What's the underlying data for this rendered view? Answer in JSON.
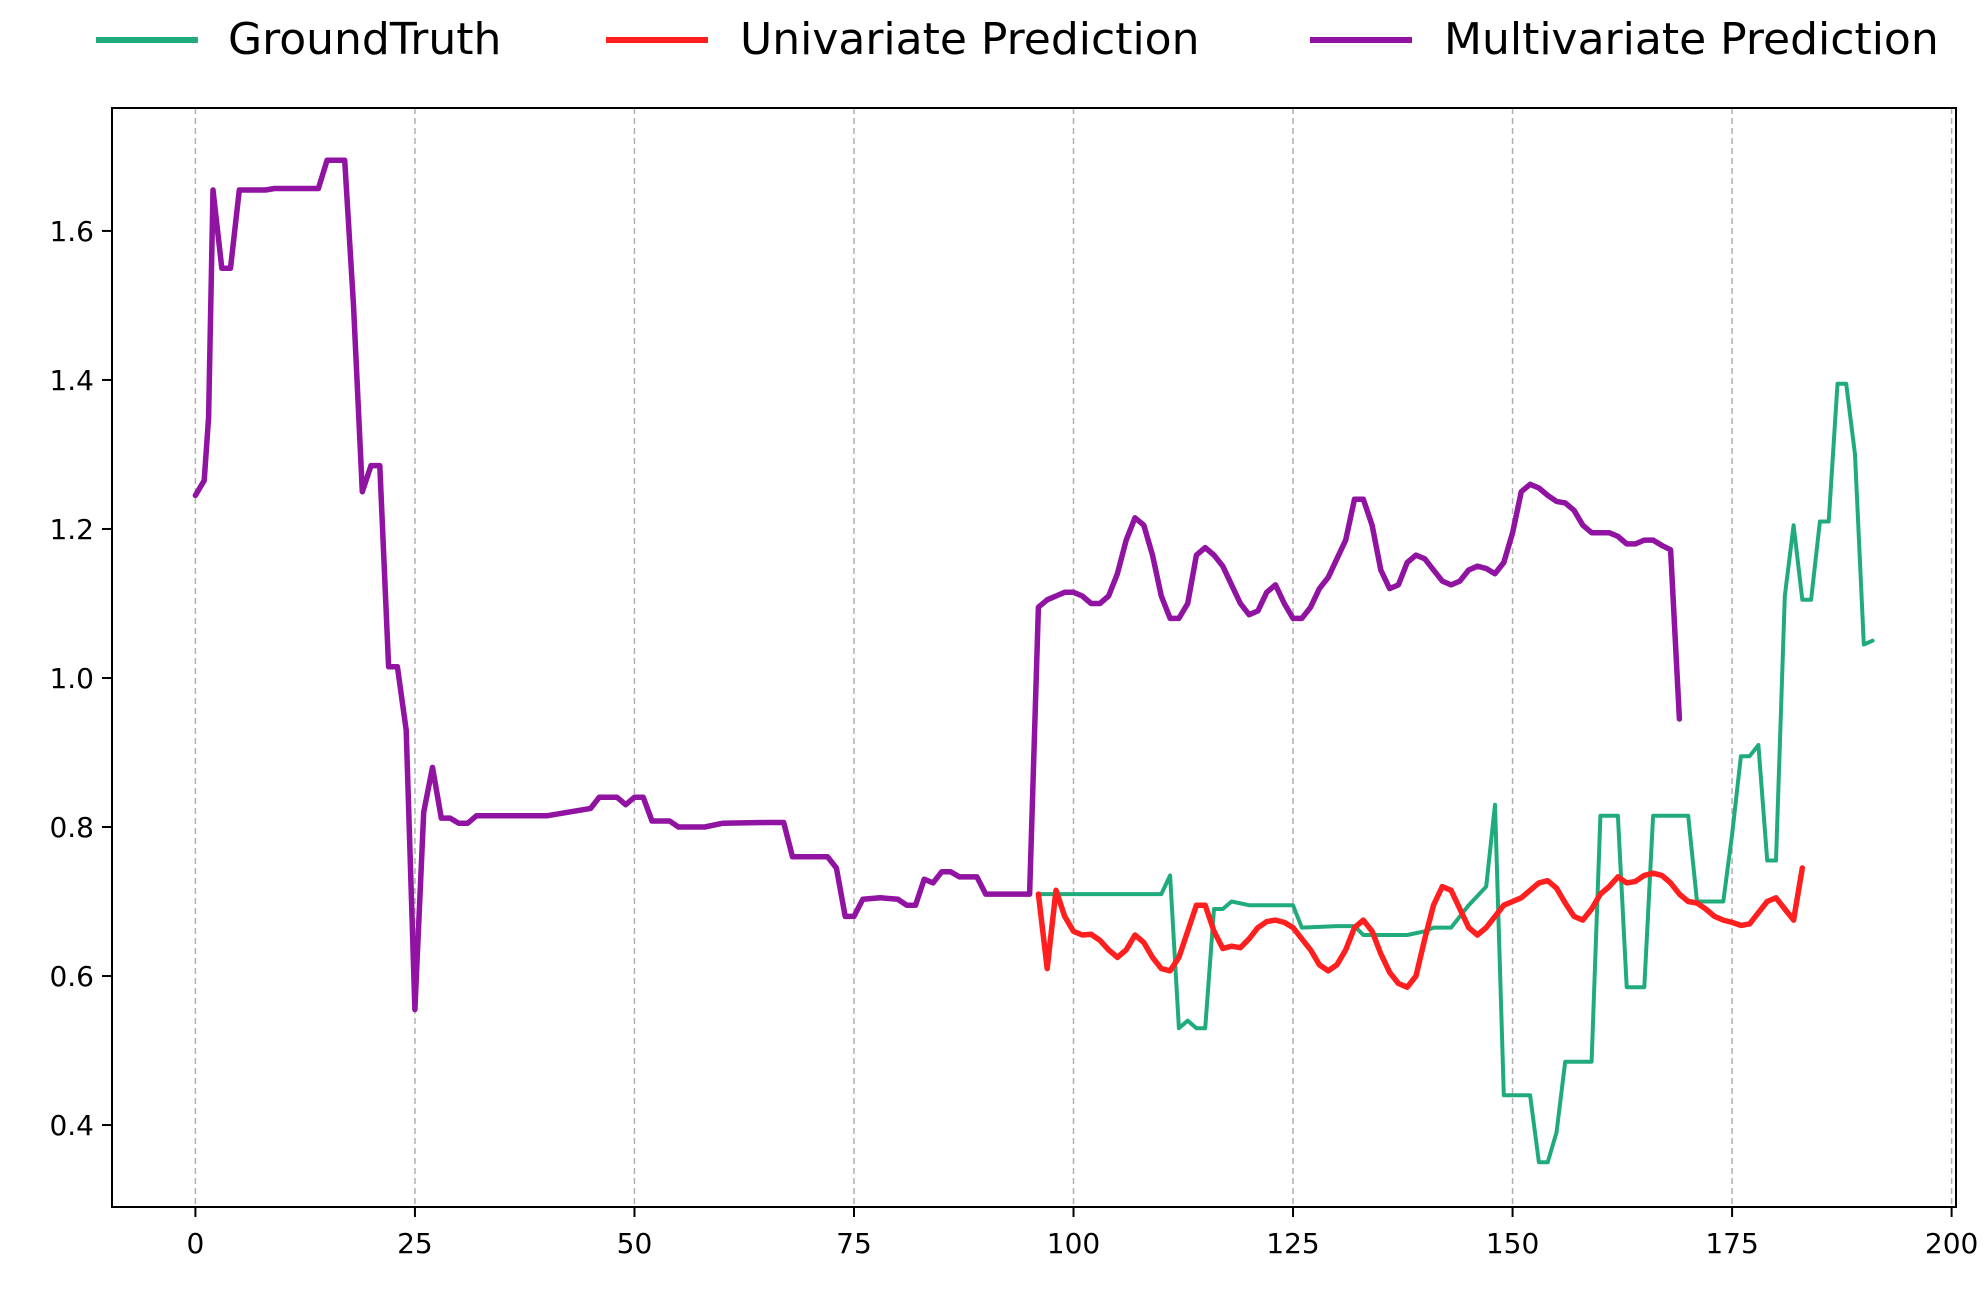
{
  "chart_data": {
    "type": "line",
    "title": "",
    "xlabel": "",
    "ylabel": "",
    "xlim": [
      -9.5,
      200.5
    ],
    "ylim": [
      0.29,
      1.765
    ],
    "xticks": [
      0,
      25,
      50,
      75,
      100,
      125,
      150,
      175,
      200
    ],
    "yticks": [
      0.4,
      0.6,
      0.8,
      1.0,
      1.2,
      1.4,
      1.6
    ],
    "xtick_labels": [
      "0",
      "25",
      "50",
      "75",
      "100",
      "125",
      "150",
      "175",
      "200"
    ],
    "ytick_labels": [
      "0.4",
      "0.6",
      "0.8",
      "1.0",
      "1.2",
      "1.4",
      "1.6"
    ],
    "grid": "vertical dashed",
    "legend_position": "top, outside plot, horizontal",
    "series": [
      {
        "name": "GroundTruth",
        "color": "#20ac7a",
        "points": [
          [
            96,
            0.71
          ],
          [
            100,
            0.71
          ],
          [
            105,
            0.71
          ],
          [
            110,
            0.71
          ],
          [
            111,
            0.735
          ],
          [
            112,
            0.53
          ],
          [
            113,
            0.54
          ],
          [
            114,
            0.53
          ],
          [
            115,
            0.53
          ],
          [
            116,
            0.69
          ],
          [
            117,
            0.69
          ],
          [
            118,
            0.7
          ],
          [
            120,
            0.695
          ],
          [
            125,
            0.695
          ],
          [
            126,
            0.665
          ],
          [
            130,
            0.667
          ],
          [
            132,
            0.667
          ],
          [
            133,
            0.655
          ],
          [
            138,
            0.655
          ],
          [
            140,
            0.66
          ],
          [
            141,
            0.665
          ],
          [
            143,
            0.665
          ],
          [
            145,
            0.695
          ],
          [
            147,
            0.72
          ],
          [
            148,
            0.83
          ],
          [
            149,
            0.44
          ],
          [
            151,
            0.44
          ],
          [
            152,
            0.44
          ],
          [
            153,
            0.35
          ],
          [
            154,
            0.35
          ],
          [
            155,
            0.39
          ],
          [
            156,
            0.485
          ],
          [
            159,
            0.485
          ],
          [
            160,
            0.815
          ],
          [
            162,
            0.815
          ],
          [
            163,
            0.585
          ],
          [
            165,
            0.585
          ],
          [
            166,
            0.815
          ],
          [
            170,
            0.815
          ],
          [
            171,
            0.7
          ],
          [
            174,
            0.7
          ],
          [
            175,
            0.79
          ],
          [
            176,
            0.895
          ],
          [
            177,
            0.895
          ],
          [
            178,
            0.91
          ],
          [
            179,
            0.755
          ],
          [
            180,
            0.755
          ],
          [
            181,
            1.11
          ],
          [
            182,
            1.205
          ],
          [
            183,
            1.105
          ],
          [
            184,
            1.105
          ],
          [
            185,
            1.21
          ],
          [
            186,
            1.21
          ],
          [
            187,
            1.395
          ],
          [
            188,
            1.395
          ],
          [
            189,
            1.3
          ],
          [
            190,
            1.045
          ],
          [
            191,
            1.05
          ]
        ]
      },
      {
        "name": "Univariate Prediction",
        "color": "#ff1f1f",
        "points": [
          [
            96,
            0.71
          ],
          [
            97,
            0.61
          ],
          [
            98,
            0.715
          ],
          [
            99,
            0.68
          ],
          [
            100,
            0.66
          ],
          [
            101,
            0.655
          ],
          [
            102,
            0.656
          ],
          [
            103,
            0.648
          ],
          [
            104,
            0.635
          ],
          [
            105,
            0.625
          ],
          [
            106,
            0.635
          ],
          [
            107,
            0.655
          ],
          [
            108,
            0.645
          ],
          [
            109,
            0.625
          ],
          [
            110,
            0.61
          ],
          [
            111,
            0.607
          ],
          [
            112,
            0.625
          ],
          [
            113,
            0.66
          ],
          [
            114,
            0.695
          ],
          [
            115,
            0.695
          ],
          [
            116,
            0.66
          ],
          [
            117,
            0.637
          ],
          [
            118,
            0.64
          ],
          [
            119,
            0.638
          ],
          [
            120,
            0.65
          ],
          [
            121,
            0.665
          ],
          [
            122,
            0.673
          ],
          [
            123,
            0.675
          ],
          [
            124,
            0.672
          ],
          [
            125,
            0.665
          ],
          [
            126,
            0.65
          ],
          [
            127,
            0.635
          ],
          [
            128,
            0.615
          ],
          [
            129,
            0.607
          ],
          [
            130,
            0.615
          ],
          [
            131,
            0.635
          ],
          [
            132,
            0.665
          ],
          [
            133,
            0.675
          ],
          [
            134,
            0.66
          ],
          [
            135,
            0.63
          ],
          [
            136,
            0.605
          ],
          [
            137,
            0.59
          ],
          [
            138,
            0.585
          ],
          [
            139,
            0.6
          ],
          [
            140,
            0.65
          ],
          [
            141,
            0.695
          ],
          [
            142,
            0.72
          ],
          [
            143,
            0.715
          ],
          [
            144,
            0.69
          ],
          [
            145,
            0.665
          ],
          [
            146,
            0.655
          ],
          [
            147,
            0.665
          ],
          [
            148,
            0.68
          ],
          [
            149,
            0.695
          ],
          [
            150,
            0.7
          ],
          [
            151,
            0.705
          ],
          [
            152,
            0.715
          ],
          [
            153,
            0.725
          ],
          [
            154,
            0.728
          ],
          [
            155,
            0.718
          ],
          [
            156,
            0.698
          ],
          [
            157,
            0.68
          ],
          [
            158,
            0.675
          ],
          [
            159,
            0.69
          ],
          [
            160,
            0.71
          ],
          [
            161,
            0.72
          ],
          [
            162,
            0.733
          ],
          [
            163,
            0.725
          ],
          [
            164,
            0.727
          ],
          [
            165,
            0.735
          ],
          [
            166,
            0.738
          ],
          [
            167,
            0.735
          ],
          [
            168,
            0.725
          ],
          [
            169,
            0.71
          ],
          [
            170,
            0.7
          ],
          [
            171,
            0.698
          ],
          [
            172,
            0.69
          ],
          [
            173,
            0.68
          ],
          [
            174,
            0.675
          ],
          [
            175,
            0.672
          ],
          [
            176,
            0.668
          ],
          [
            177,
            0.67
          ],
          [
            178,
            0.685
          ],
          [
            179,
            0.7
          ],
          [
            180,
            0.705
          ],
          [
            181,
            0.69
          ],
          [
            182,
            0.675
          ],
          [
            183,
            0.745
          ]
        ]
      },
      {
        "name": "Multivariate Prediction",
        "color": "#9013a1",
        "points": [
          [
            0,
            1.245
          ],
          [
            1,
            1.265
          ],
          [
            1.5,
            1.35
          ],
          [
            2,
            1.655
          ],
          [
            3,
            1.55
          ],
          [
            4,
            1.55
          ],
          [
            5,
            1.655
          ],
          [
            6,
            1.655
          ],
          [
            8,
            1.655
          ],
          [
            9,
            1.657
          ],
          [
            13,
            1.657
          ],
          [
            14,
            1.657
          ],
          [
            15,
            1.695
          ],
          [
            17,
            1.695
          ],
          [
            18,
            1.5
          ],
          [
            19,
            1.25
          ],
          [
            20,
            1.285
          ],
          [
            21,
            1.285
          ],
          [
            22,
            1.015
          ],
          [
            23,
            1.015
          ],
          [
            24,
            0.93
          ],
          [
            25,
            0.555
          ],
          [
            26,
            0.82
          ],
          [
            27,
            0.88
          ],
          [
            28,
            0.812
          ],
          [
            29,
            0.812
          ],
          [
            30,
            0.805
          ],
          [
            31,
            0.805
          ],
          [
            32,
            0.815
          ],
          [
            35,
            0.815
          ],
          [
            40,
            0.815
          ],
          [
            45,
            0.825
          ],
          [
            46,
            0.84
          ],
          [
            48,
            0.84
          ],
          [
            49,
            0.83
          ],
          [
            50,
            0.84
          ],
          [
            51,
            0.84
          ],
          [
            52,
            0.808
          ],
          [
            54,
            0.808
          ],
          [
            55,
            0.8
          ],
          [
            58,
            0.8
          ],
          [
            60,
            0.805
          ],
          [
            65,
            0.806
          ],
          [
            67,
            0.806
          ],
          [
            68,
            0.76
          ],
          [
            72,
            0.76
          ],
          [
            73,
            0.745
          ],
          [
            74,
            0.68
          ],
          [
            75,
            0.68
          ],
          [
            76,
            0.703
          ],
          [
            78,
            0.705
          ],
          [
            80,
            0.703
          ],
          [
            81,
            0.695
          ],
          [
            82,
            0.695
          ],
          [
            83,
            0.73
          ],
          [
            84,
            0.725
          ],
          [
            85,
            0.74
          ],
          [
            86,
            0.74
          ],
          [
            87,
            0.733
          ],
          [
            89,
            0.733
          ],
          [
            90,
            0.71
          ],
          [
            95,
            0.71
          ],
          [
            96,
            1.095
          ],
          [
            97,
            1.105
          ],
          [
            98,
            1.11
          ],
          [
            99,
            1.115
          ],
          [
            100,
            1.115
          ],
          [
            101,
            1.11
          ],
          [
            102,
            1.1
          ],
          [
            103,
            1.1
          ],
          [
            104,
            1.11
          ],
          [
            105,
            1.14
          ],
          [
            106,
            1.185
          ],
          [
            107,
            1.215
          ],
          [
            108,
            1.205
          ],
          [
            109,
            1.165
          ],
          [
            110,
            1.11
          ],
          [
            111,
            1.08
          ],
          [
            112,
            1.08
          ],
          [
            113,
            1.1
          ],
          [
            114,
            1.165
          ],
          [
            115,
            1.175
          ],
          [
            116,
            1.165
          ],
          [
            117,
            1.15
          ],
          [
            118,
            1.125
          ],
          [
            119,
            1.1
          ],
          [
            120,
            1.085
          ],
          [
            121,
            1.09
          ],
          [
            122,
            1.115
          ],
          [
            123,
            1.125
          ],
          [
            124,
            1.1
          ],
          [
            125,
            1.08
          ],
          [
            126,
            1.08
          ],
          [
            127,
            1.095
          ],
          [
            128,
            1.12
          ],
          [
            129,
            1.135
          ],
          [
            130,
            1.16
          ],
          [
            131,
            1.185
          ],
          [
            132,
            1.24
          ],
          [
            133,
            1.24
          ],
          [
            134,
            1.205
          ],
          [
            135,
            1.145
          ],
          [
            136,
            1.12
          ],
          [
            137,
            1.125
          ],
          [
            138,
            1.155
          ],
          [
            139,
            1.165
          ],
          [
            140,
            1.16
          ],
          [
            141,
            1.145
          ],
          [
            142,
            1.13
          ],
          [
            143,
            1.125
          ],
          [
            144,
            1.13
          ],
          [
            145,
            1.145
          ],
          [
            146,
            1.15
          ],
          [
            147,
            1.147
          ],
          [
            148,
            1.14
          ],
          [
            149,
            1.155
          ],
          [
            150,
            1.195
          ],
          [
            151,
            1.25
          ],
          [
            152,
            1.26
          ],
          [
            153,
            1.255
          ],
          [
            154,
            1.245
          ],
          [
            155,
            1.237
          ],
          [
            156,
            1.235
          ],
          [
            157,
            1.225
          ],
          [
            158,
            1.205
          ],
          [
            159,
            1.195
          ],
          [
            160,
            1.195
          ],
          [
            161,
            1.195
          ],
          [
            162,
            1.19
          ],
          [
            163,
            1.18
          ],
          [
            164,
            1.18
          ],
          [
            165,
            1.185
          ],
          [
            166,
            1.185
          ],
          [
            167,
            1.178
          ],
          [
            168,
            1.172
          ],
          [
            169,
            0.945
          ]
        ]
      }
    ]
  }
}
